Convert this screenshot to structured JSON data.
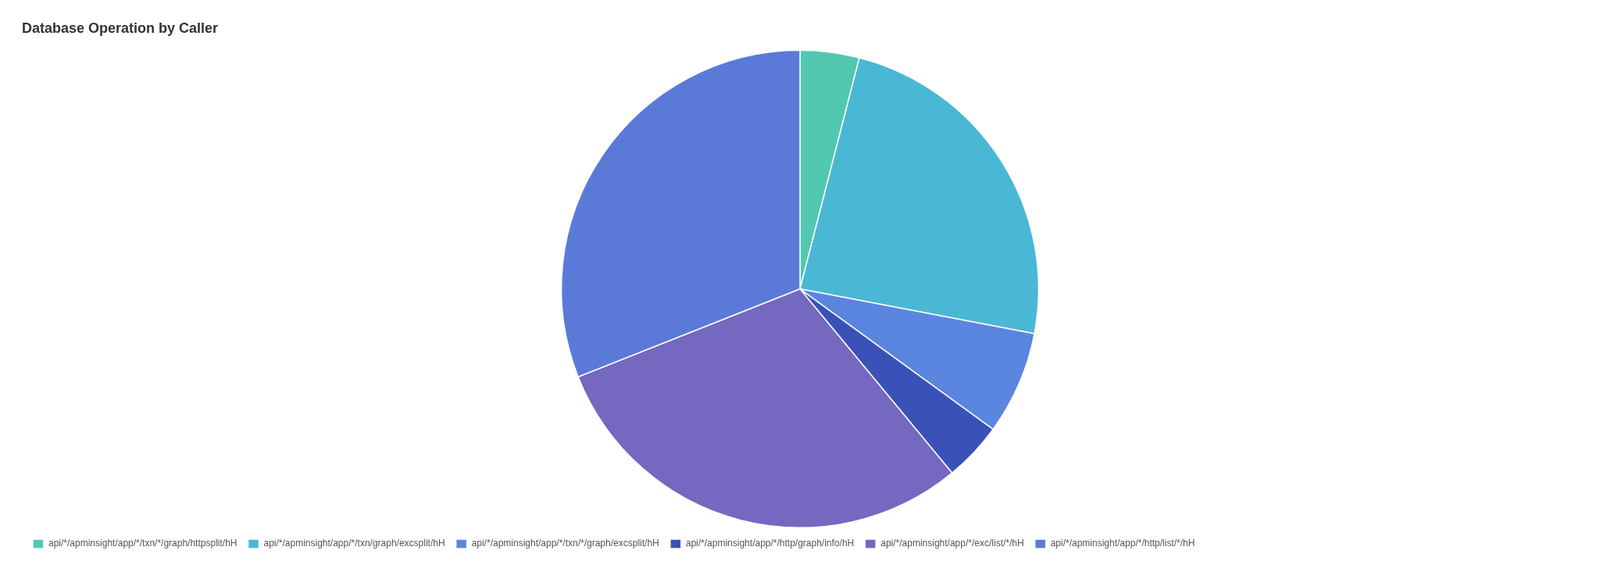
{
  "chart_data": {
    "type": "pie",
    "title": "Database Operation by Caller",
    "categories": [
      "api/*/apminsight/app/*/txn/*/graph/httpsplit/hH",
      "api/*/apminsight/app/*/txn/graph/excsplit/hH",
      "api/*/apminsight/app/*/txn/*/graph/excsplit/hH",
      "api/*/apminsight/app/*/http/graph/info/hH",
      "api/*/apminsight/app/*/exc/list/*/hH",
      "api/*/apminsight/app/*/http/list/*/hH"
    ],
    "values": [
      4,
      24,
      7,
      4,
      30,
      31
    ],
    "colors": [
      "#52c8b0",
      "#4ab8d4",
      "#5a86e0",
      "#3a52b8",
      "#7468c0",
      "#5b7ad8"
    ],
    "legend": "lower left"
  }
}
